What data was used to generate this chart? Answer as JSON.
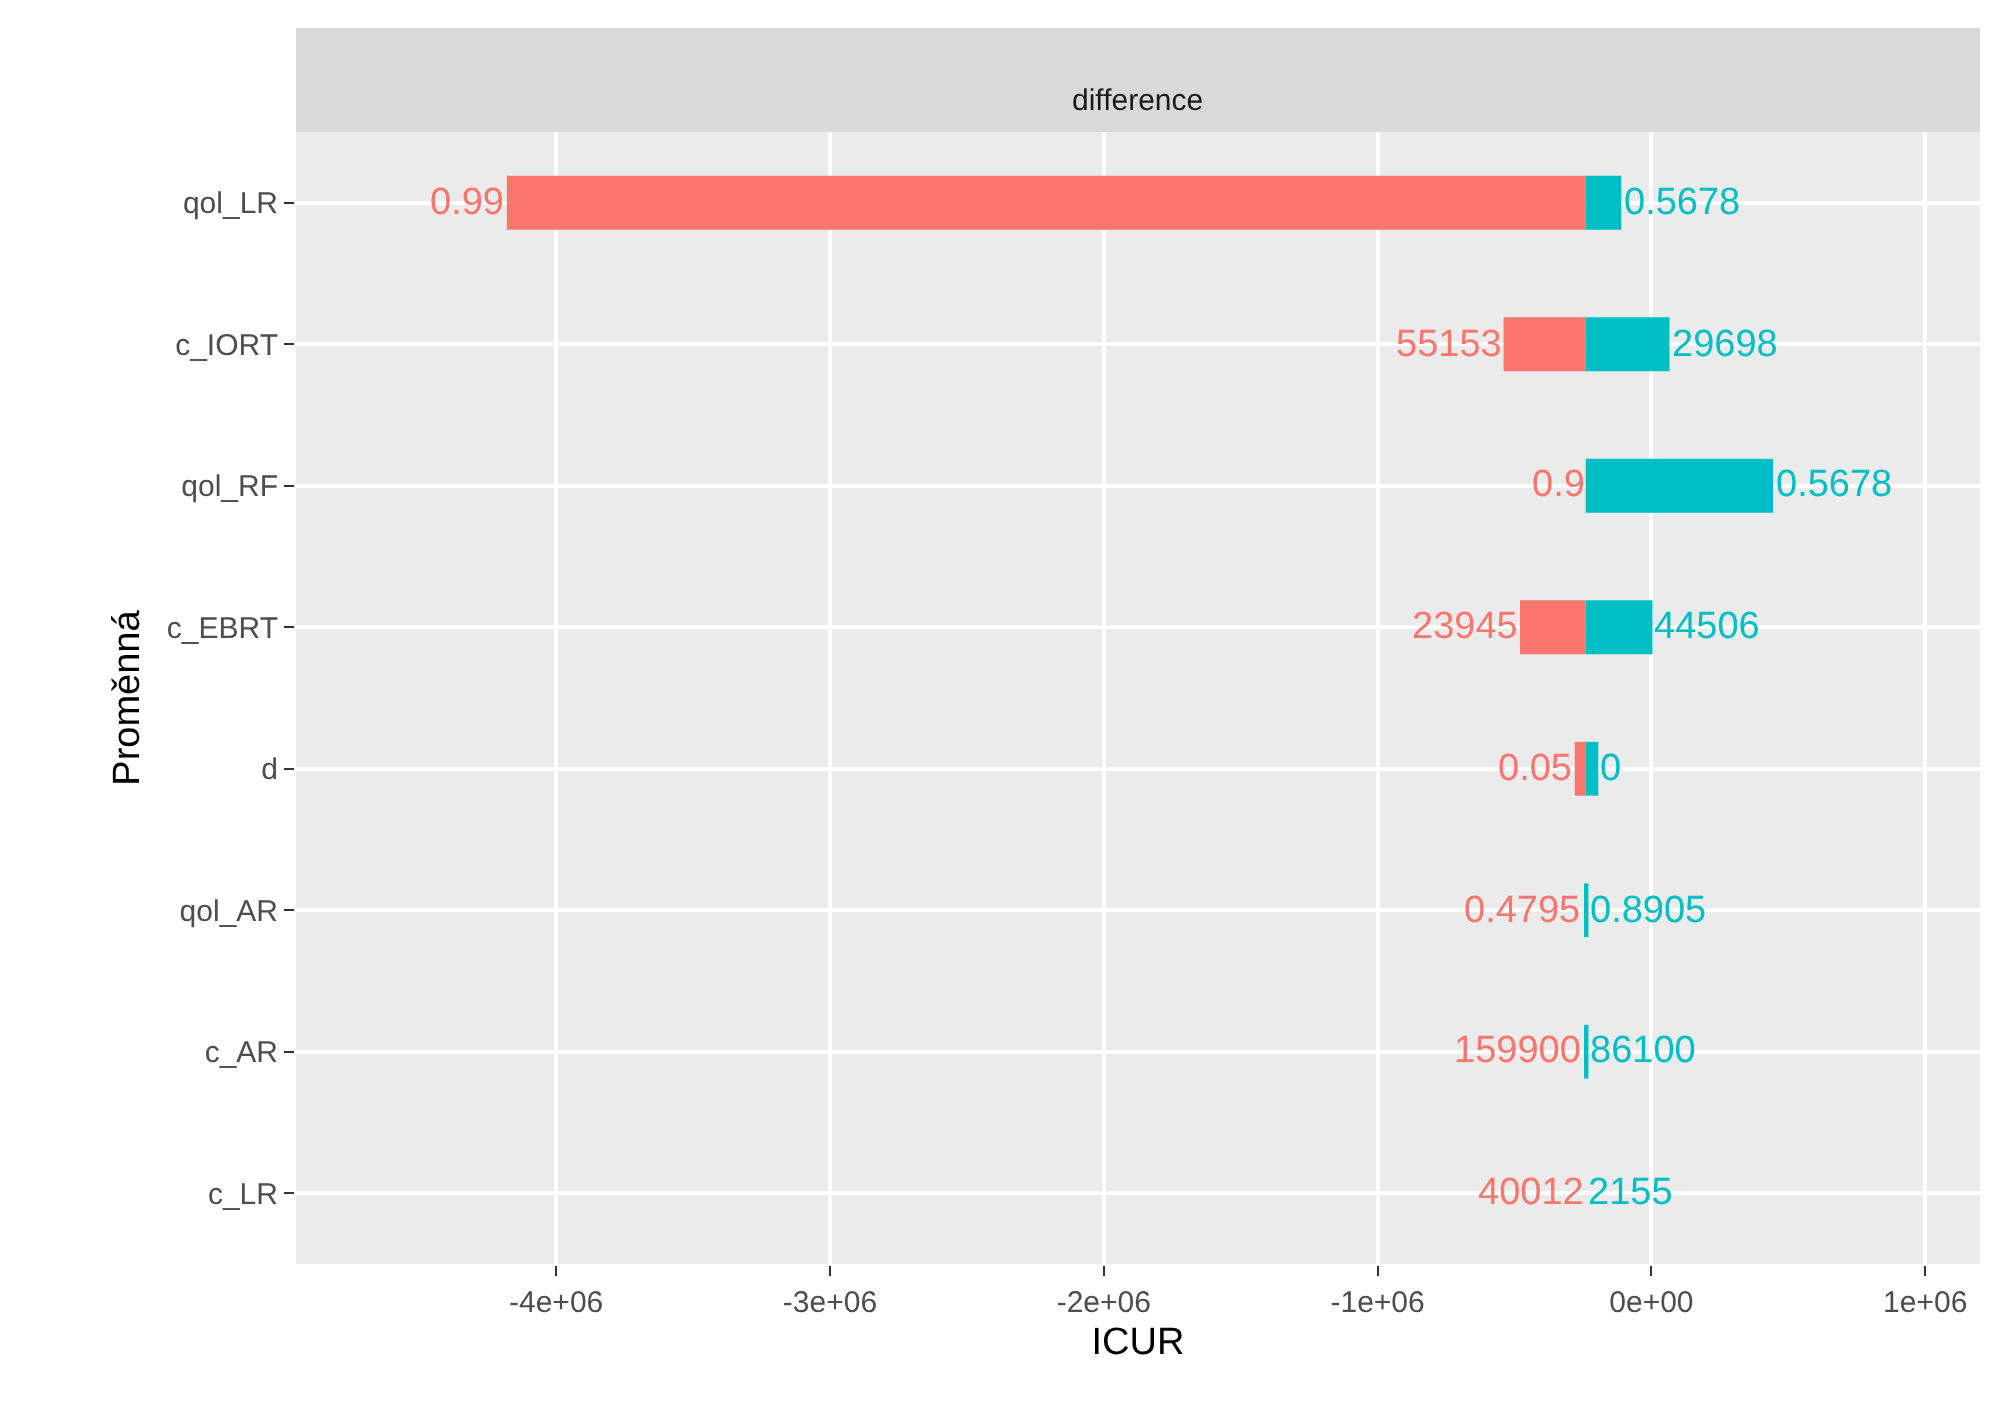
{
  "chart_data": {
    "type": "bar",
    "orientation": "horizontal",
    "title": "difference",
    "xlabel": "ICUR",
    "ylabel": "Proměnná",
    "categories": [
      "qol_LR",
      "c_IORT",
      "qol_RF",
      "c_EBRT",
      "d",
      "qol_AR",
      "c_AR",
      "c_LR"
    ],
    "series": [
      {
        "color": "#f8766d",
        "base": [
          -240000,
          -240000,
          null,
          -240000,
          -240000,
          null,
          null,
          null
        ],
        "values": [
          -3940000,
          -300000,
          null,
          -240000,
          -40000,
          null,
          null,
          null
        ]
      },
      {
        "color": "#00bfc4",
        "base": [
          -240000,
          -240000,
          -240000,
          -240000,
          -240000,
          -240000,
          -240000,
          null
        ],
        "values": [
          130000,
          306000,
          684000,
          244000,
          46000,
          10000,
          10000,
          null
        ]
      }
    ],
    "annotations": [
      {
        "text": "0.99",
        "x": -4180000,
        "y": "qol_LR"
      },
      {
        "text": "0.5678",
        "x": -110000,
        "y": "qol_LR"
      },
      {
        "text": "55153",
        "x": -540000,
        "y": "c_IORT"
      },
      {
        "text": "29698",
        "x": 66000,
        "y": "c_IORT"
      },
      {
        "text": "0.9",
        "x": -240000,
        "y": "qol_RF"
      },
      {
        "text": "0.5678",
        "x": 444000,
        "y": "qol_RF"
      },
      {
        "text": "23945",
        "x": -480000,
        "y": "c_EBRT"
      },
      {
        "text": "44506",
        "x": 4000,
        "y": "c_EBRT"
      },
      {
        "text": "0.05",
        "x": -280000,
        "y": "d"
      },
      {
        "text": "0",
        "x": -194000,
        "y": "d"
      },
      {
        "text": "0.4795",
        "x": -250000,
        "y": "qol_AR"
      },
      {
        "text": "0.8905",
        "x": -230000,
        "y": "qol_AR"
      },
      {
        "text": "159900",
        "x": -250000,
        "y": "c_AR"
      },
      {
        "text": "86100",
        "x": -230000,
        "y": "c_AR"
      },
      "40012",
      "2155"
    ],
    "xlim": [
      -4950000,
      1200000
    ],
    "xticks": [
      {
        "value": -4000000,
        "label": "-4e+06"
      },
      {
        "value": -3000000,
        "label": "-3e+06"
      },
      {
        "value": -2000000,
        "label": "-2e+06"
      },
      {
        "value": -1000000,
        "label": "-1e+06"
      },
      {
        "value": 0,
        "label": "0e+00"
      },
      {
        "value": 1000000,
        "label": "1e+06"
      }
    ],
    "grid": true
  }
}
